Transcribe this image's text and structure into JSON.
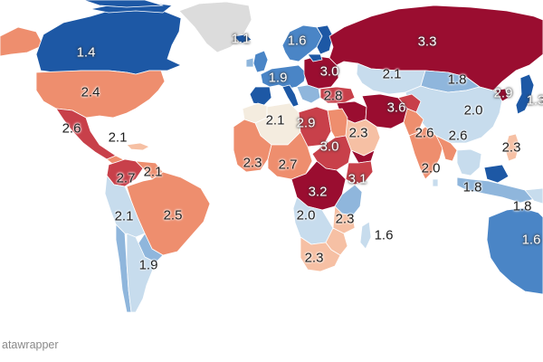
{
  "credit": "atawrapper",
  "colors": {
    "deep_red": "#9a0d30",
    "red": "#c8404a",
    "salmon": "#ee8e6e",
    "light_salmon": "#f6c0a4",
    "pale": "#f4ecdf",
    "light_blue": "#c7dced",
    "mid_blue": "#8fb6dc",
    "blue": "#4a85c6",
    "deep_blue": "#1d58a5",
    "no_data": "#dcdcdc"
  },
  "labels": [
    {
      "id": "canada",
      "text": "1.4"
    },
    {
      "id": "greenland",
      "text": "1.1"
    },
    {
      "id": "scandinavia",
      "text": "1.6"
    },
    {
      "id": "russia",
      "text": "3.3"
    },
    {
      "id": "eastern-europe",
      "text": "3.0"
    },
    {
      "id": "western-europe",
      "text": "1.9"
    },
    {
      "id": "kazakhstan",
      "text": "2.1"
    },
    {
      "id": "mongolia",
      "text": "1.8"
    },
    {
      "id": "north-korea",
      "text": "2.9"
    },
    {
      "id": "japan",
      "text": "1.3"
    },
    {
      "id": "usa",
      "text": "2.4"
    },
    {
      "id": "turkey",
      "text": "2.8"
    },
    {
      "id": "iran",
      "text": "3.6"
    },
    {
      "id": "china",
      "text": "2.0"
    },
    {
      "id": "algeria",
      "text": "2.1"
    },
    {
      "id": "libya",
      "text": "2.9"
    },
    {
      "id": "saudi-arabia",
      "text": "2.3"
    },
    {
      "id": "pakistan",
      "text": "2.6"
    },
    {
      "id": "bangladesh",
      "text": "2.6"
    },
    {
      "id": "mexico",
      "text": "2.6"
    },
    {
      "id": "caribbean",
      "text": "2.1"
    },
    {
      "id": "sudan",
      "text": "3.0"
    },
    {
      "id": "philippines",
      "text": "2.3"
    },
    {
      "id": "west-africa",
      "text": "2.3"
    },
    {
      "id": "sahel",
      "text": "2.7"
    },
    {
      "id": "india",
      "text": "2.0"
    },
    {
      "id": "venezuela",
      "text": "2.7"
    },
    {
      "id": "guyana",
      "text": "2.1"
    },
    {
      "id": "ethiopia",
      "text": "3.1"
    },
    {
      "id": "congo",
      "text": "3.2"
    },
    {
      "id": "indonesia",
      "text": "1.8"
    },
    {
      "id": "peru",
      "text": "2.1"
    },
    {
      "id": "brazil",
      "text": "2.5"
    },
    {
      "id": "angola",
      "text": "2.0"
    },
    {
      "id": "tanzania",
      "text": "2.3"
    },
    {
      "id": "madagascar",
      "text": "1.6"
    },
    {
      "id": "northern-australia",
      "text": "1.8"
    },
    {
      "id": "australia",
      "text": "1.6"
    },
    {
      "id": "argentina",
      "text": "1.9"
    },
    {
      "id": "south-africa",
      "text": "2.3"
    }
  ]
}
